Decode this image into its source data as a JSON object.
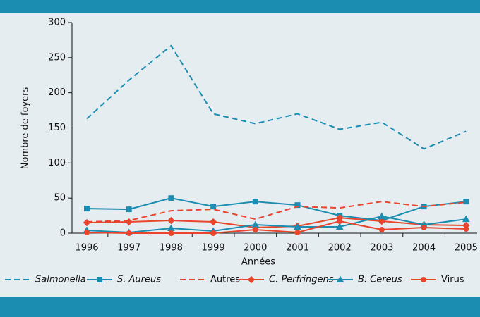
{
  "chart_data": {
    "type": "line",
    "x_label": "Années",
    "y_label": "Nombre de foyers",
    "categories": [
      "1996",
      "1997",
      "1998",
      "1999",
      "2000",
      "2001",
      "2002",
      "2003",
      "2004",
      "2005"
    ],
    "ylim": [
      0,
      300
    ],
    "yticks": [
      0,
      50,
      100,
      150,
      200,
      250,
      300
    ],
    "series": [
      {
        "name": "Salmonella",
        "color": "#1b8db0",
        "dash": true,
        "italic": true,
        "values": [
          163,
          218,
          267,
          170,
          156,
          170,
          148,
          158,
          120,
          145
        ]
      },
      {
        "name": "S. Aureus",
        "color": "#1b8db0",
        "marker": "square",
        "italic": true,
        "values": [
          35,
          34,
          50,
          38,
          45,
          40,
          25,
          18,
          38,
          45
        ]
      },
      {
        "name": "Autres",
        "color": "#e8452c",
        "dash": true,
        "values": [
          16,
          18,
          32,
          34,
          20,
          38,
          36,
          45,
          38,
          44
        ]
      },
      {
        "name": "C. Perfringens",
        "color": "#e8452c",
        "marker": "diamond",
        "italic": true,
        "values": [
          15,
          16,
          18,
          16,
          8,
          10,
          22,
          17,
          12,
          11
        ]
      },
      {
        "name": "B. Cereus",
        "color": "#1b8db0",
        "marker": "triangle",
        "italic": true,
        "values": [
          4,
          1,
          7,
          3,
          12,
          9,
          9,
          24,
          12,
          20
        ]
      },
      {
        "name": "Virus",
        "color": "#e8452c",
        "marker": "circle",
        "values": [
          1,
          0,
          0,
          0,
          5,
          1,
          17,
          5,
          8,
          6
        ]
      }
    ]
  }
}
